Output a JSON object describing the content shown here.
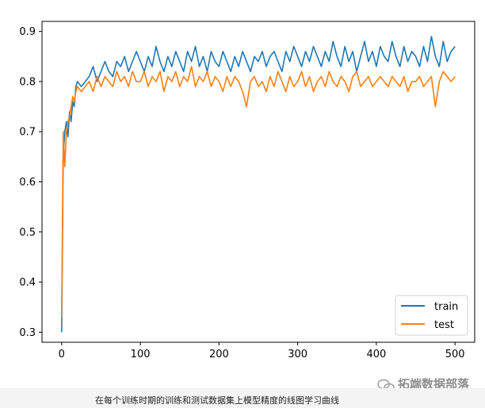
{
  "chart_data": {
    "type": "line",
    "title": "",
    "xlabel": "",
    "ylabel": "",
    "xlim": [
      -25,
      525
    ],
    "ylim": [
      0.28,
      0.92
    ],
    "x_ticks": [
      0,
      100,
      200,
      300,
      400,
      500
    ],
    "y_ticks": [
      0.3,
      0.4,
      0.5,
      0.6,
      0.7,
      0.8,
      0.9
    ],
    "x_tick_labels": [
      "0",
      "100",
      "200",
      "300",
      "400",
      "500"
    ],
    "y_tick_labels": [
      "0.3",
      "0.4",
      "0.5",
      "0.6",
      "0.7",
      "0.8",
      "0.9"
    ],
    "grid": false,
    "legend_position": "lower-right",
    "series": [
      {
        "name": "train",
        "color": "#1f77b4",
        "x": [
          0,
          2,
          4,
          6,
          8,
          10,
          12,
          14,
          16,
          18,
          20,
          25,
          30,
          35,
          40,
          45,
          50,
          55,
          60,
          65,
          70,
          75,
          80,
          85,
          90,
          95,
          100,
          105,
          110,
          115,
          120,
          125,
          130,
          135,
          140,
          145,
          150,
          155,
          160,
          165,
          170,
          175,
          180,
          185,
          190,
          195,
          200,
          205,
          210,
          215,
          220,
          225,
          230,
          235,
          240,
          245,
          250,
          255,
          260,
          265,
          270,
          275,
          280,
          285,
          290,
          295,
          300,
          305,
          310,
          315,
          320,
          325,
          330,
          335,
          340,
          345,
          350,
          355,
          360,
          365,
          370,
          375,
          380,
          385,
          390,
          395,
          400,
          405,
          410,
          415,
          420,
          425,
          430,
          435,
          440,
          445,
          450,
          455,
          460,
          465,
          470,
          475,
          480,
          485,
          490,
          495,
          500
        ],
        "y": [
          0.3,
          0.65,
          0.7,
          0.72,
          0.69,
          0.74,
          0.72,
          0.76,
          0.75,
          0.79,
          0.8,
          0.79,
          0.8,
          0.81,
          0.83,
          0.8,
          0.82,
          0.84,
          0.82,
          0.81,
          0.84,
          0.83,
          0.85,
          0.82,
          0.84,
          0.86,
          0.84,
          0.82,
          0.85,
          0.83,
          0.87,
          0.84,
          0.82,
          0.85,
          0.83,
          0.86,
          0.84,
          0.82,
          0.86,
          0.84,
          0.87,
          0.83,
          0.85,
          0.82,
          0.86,
          0.84,
          0.83,
          0.86,
          0.84,
          0.82,
          0.85,
          0.83,
          0.86,
          0.84,
          0.82,
          0.85,
          0.84,
          0.86,
          0.83,
          0.85,
          0.86,
          0.84,
          0.82,
          0.86,
          0.84,
          0.87,
          0.85,
          0.83,
          0.86,
          0.84,
          0.87,
          0.85,
          0.83,
          0.86,
          0.84,
          0.88,
          0.85,
          0.83,
          0.87,
          0.84,
          0.86,
          0.82,
          0.85,
          0.88,
          0.84,
          0.86,
          0.83,
          0.87,
          0.85,
          0.84,
          0.88,
          0.85,
          0.83,
          0.87,
          0.84,
          0.86,
          0.85,
          0.83,
          0.87,
          0.84,
          0.89,
          0.85,
          0.83,
          0.88,
          0.84,
          0.86,
          0.87
        ]
      },
      {
        "name": "test",
        "color": "#ff7f0e",
        "x": [
          0,
          2,
          4,
          6,
          8,
          10,
          12,
          14,
          16,
          18,
          20,
          25,
          30,
          35,
          40,
          45,
          50,
          55,
          60,
          65,
          70,
          75,
          80,
          85,
          90,
          95,
          100,
          105,
          110,
          115,
          120,
          125,
          130,
          135,
          140,
          145,
          150,
          155,
          160,
          165,
          170,
          175,
          180,
          185,
          190,
          195,
          200,
          205,
          210,
          215,
          220,
          225,
          230,
          235,
          240,
          245,
          250,
          255,
          260,
          265,
          270,
          275,
          280,
          285,
          290,
          295,
          300,
          305,
          310,
          315,
          320,
          325,
          330,
          335,
          340,
          345,
          350,
          355,
          360,
          365,
          370,
          375,
          380,
          385,
          390,
          395,
          400,
          405,
          410,
          415,
          420,
          425,
          430,
          435,
          440,
          445,
          450,
          455,
          460,
          465,
          470,
          475,
          480,
          485,
          490,
          495,
          500
        ],
        "y": [
          0.33,
          0.7,
          0.63,
          0.7,
          0.72,
          0.73,
          0.75,
          0.77,
          0.76,
          0.78,
          0.79,
          0.78,
          0.79,
          0.8,
          0.78,
          0.81,
          0.79,
          0.81,
          0.8,
          0.79,
          0.82,
          0.8,
          0.81,
          0.79,
          0.82,
          0.8,
          0.8,
          0.82,
          0.79,
          0.81,
          0.8,
          0.82,
          0.78,
          0.81,
          0.8,
          0.82,
          0.79,
          0.81,
          0.8,
          0.83,
          0.79,
          0.81,
          0.8,
          0.82,
          0.79,
          0.81,
          0.8,
          0.78,
          0.81,
          0.79,
          0.81,
          0.8,
          0.78,
          0.75,
          0.8,
          0.81,
          0.79,
          0.8,
          0.78,
          0.81,
          0.79,
          0.82,
          0.8,
          0.78,
          0.81,
          0.79,
          0.8,
          0.82,
          0.79,
          0.81,
          0.78,
          0.8,
          0.81,
          0.79,
          0.82,
          0.8,
          0.79,
          0.81,
          0.8,
          0.78,
          0.81,
          0.82,
          0.79,
          0.8,
          0.81,
          0.79,
          0.8,
          0.81,
          0.8,
          0.79,
          0.81,
          0.8,
          0.79,
          0.81,
          0.78,
          0.8,
          0.8,
          0.81,
          0.79,
          0.8,
          0.81,
          0.75,
          0.8,
          0.82,
          0.81,
          0.8,
          0.81
        ]
      }
    ]
  },
  "caption": "在每个训练时期的训练和测试数据集上模型精度的线图学习曲线",
  "watermark": "拓端数据部落"
}
